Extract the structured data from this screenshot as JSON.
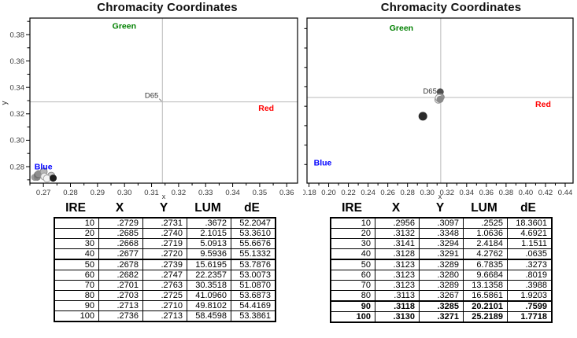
{
  "chart_data": [
    {
      "type": "scatter",
      "title": "Chromacity Coordinates",
      "xlabel": "x",
      "ylabel": "y",
      "xlim": [
        0.265,
        0.364
      ],
      "ylim": [
        0.2675,
        0.3925
      ],
      "xticks": [
        0.27,
        0.28,
        0.29,
        0.3,
        0.31,
        0.32,
        0.33,
        0.34,
        0.35,
        0.36
      ],
      "xtick_labels": [
        "0.27",
        "0.28",
        "0.29",
        "0.30",
        "0.31",
        "0.32",
        "0.33",
        "0.34",
        "0.35",
        "0.36"
      ],
      "x_minor_step": 0.005,
      "yticks": [
        0.28,
        0.3,
        0.32,
        0.34,
        0.36,
        0.38
      ],
      "ytick_labels": [
        "0.28",
        "0.30",
        "0.32",
        "0.34",
        "0.36",
        "0.38"
      ],
      "y_minor_step": 0.01,
      "show_ytick_labels": true,
      "grid": false,
      "crosshair": {
        "x": 0.314,
        "y": 0.329,
        "color": "#b8b8b8"
      },
      "reference_label": {
        "text": "D65",
        "x": 0.314,
        "y": 0.329
      },
      "region_labels": [
        {
          "text": "Green",
          "color": "#008000",
          "x": 0.2999,
          "y": 0.3866
        },
        {
          "text": "Red",
          "color": "#ff0000",
          "x": 0.3524,
          "y": 0.3245
        },
        {
          "text": "Blue",
          "color": "#0000ff",
          "x": 0.27,
          "y": 0.2801
        }
      ],
      "points": [
        {
          "ire": 10,
          "x": 0.2729,
          "y": 0.2731,
          "color": "#c8c8c8",
          "stroke": "#8a8a8a"
        },
        {
          "ire": 20,
          "x": 0.2685,
          "y": 0.274,
          "color": "#7a7a7a"
        },
        {
          "ire": 30,
          "x": 0.2668,
          "y": 0.2719,
          "color": "#9a9a9a"
        },
        {
          "ire": 40,
          "x": 0.2677,
          "y": 0.272,
          "color": "#858585"
        },
        {
          "ire": 50,
          "x": 0.2678,
          "y": 0.2739,
          "color": "#6e6e6e"
        },
        {
          "ire": 60,
          "x": 0.2682,
          "y": 0.2747,
          "color": "#8f8f8f"
        },
        {
          "ire": 70,
          "x": 0.2701,
          "y": 0.2763,
          "color": "#b5b5b5",
          "stroke": "#8a8a8a"
        },
        {
          "ire": 80,
          "x": 0.2703,
          "y": 0.2725,
          "color": "#ededed",
          "stroke": "#9a9a9a"
        },
        {
          "ire": 90,
          "x": 0.2713,
          "y": 0.271,
          "color": "#f5f5f5",
          "stroke": "#a5a5a5"
        },
        {
          "ire": 100,
          "x": 0.2736,
          "y": 0.2713,
          "color": "#1f1f1f"
        }
      ]
    },
    {
      "type": "scatter",
      "title": "Chromacity Coordinates",
      "xlabel": "x",
      "ylabel": "",
      "xlim": [
        0.178,
        0.448
      ],
      "ylim": [
        0.2408,
        0.4108
      ],
      "xticks": [
        0.18,
        0.2,
        0.22,
        0.24,
        0.26,
        0.28,
        0.3,
        0.32,
        0.34,
        0.36,
        0.38,
        0.4,
        0.42,
        0.44
      ],
      "xtick_labels": [
        "0.18",
        "0.20",
        "0.22",
        "0.24",
        "0.26",
        "0.28",
        "0.30",
        "0.32",
        "0.34",
        "0.36",
        "0.38",
        "0.40",
        "0.42",
        "0.44"
      ],
      "x_minor_step": 0.01,
      "yticks": [],
      "ytick_labels": [],
      "y_minor_step": 0.02,
      "show_ytick_labels": false,
      "grid": false,
      "crosshair": {
        "x": 0.3137,
        "y": 0.329,
        "color": "#b8b8b8"
      },
      "reference_label": {
        "text": "D65",
        "x": 0.3137,
        "y": 0.329
      },
      "region_labels": [
        {
          "text": "Green",
          "color": "#008000",
          "x": 0.2738,
          "y": 0.401
        },
        {
          "text": "Red",
          "color": "#ff0000",
          "x": 0.4176,
          "y": 0.3225
        },
        {
          "text": "Blue",
          "color": "#0000ff",
          "x": 0.194,
          "y": 0.2618
        }
      ],
      "points": [
        {
          "ire": 10,
          "x": 0.2956,
          "y": 0.3097,
          "color": "#2b2b2b",
          "r": 5.5
        },
        {
          "ire": 20,
          "x": 0.3132,
          "y": 0.3348,
          "color": "#4f4f4f"
        },
        {
          "ire": 30,
          "x": 0.3141,
          "y": 0.3294,
          "color": "#8c8c8c"
        },
        {
          "ire": 40,
          "x": 0.3128,
          "y": 0.3291,
          "color": "#a3a3a3"
        },
        {
          "ire": 50,
          "x": 0.3123,
          "y": 0.3289,
          "color": "#b8b8b8"
        },
        {
          "ire": 60,
          "x": 0.3123,
          "y": 0.328,
          "color": "#c9c9c9",
          "stroke": "#9a9a9a"
        },
        {
          "ire": 70,
          "x": 0.3123,
          "y": 0.3289,
          "color": "#d6d6d6",
          "stroke": "#9a9a9a"
        },
        {
          "ire": 80,
          "x": 0.3113,
          "y": 0.3267,
          "color": "#e3e3e3",
          "stroke": "#9a9a9a"
        },
        {
          "ire": 90,
          "x": 0.3118,
          "y": 0.3285,
          "color": "#efefef",
          "stroke": "#9a9a9a"
        },
        {
          "ire": 100,
          "x": 0.313,
          "y": 0.3271,
          "color": "#8a8a8a"
        }
      ]
    },
    {
      "type": "table",
      "headers": [
        "IRE",
        "X",
        "Y",
        "LUM",
        "dE"
      ],
      "rows": [
        [
          "10",
          ".2729",
          ".2731",
          ".3672",
          "52.2047"
        ],
        [
          "20",
          ".2685",
          ".2740",
          "2.1015",
          "53.3610"
        ],
        [
          "30",
          ".2668",
          ".2719",
          "5.0913",
          "55.6676"
        ],
        [
          "40",
          ".2677",
          ".2720",
          "9.5936",
          "55.1332"
        ],
        [
          "50",
          ".2678",
          ".2739",
          "15.6195",
          "53.7876"
        ],
        [
          "60",
          ".2682",
          ".2747",
          "22.2357",
          "53.0073"
        ],
        [
          "70",
          ".2701",
          ".2763",
          "30.3518",
          "51.0870"
        ],
        [
          "80",
          ".2703",
          ".2725",
          "41.0960",
          "53.6873"
        ],
        [
          "90",
          ".2713",
          ".2710",
          "49.8102",
          "54.4169"
        ],
        [
          "100",
          ".2736",
          ".2713",
          "58.4598",
          "53.3861"
        ]
      ],
      "bold_row_indexes": [],
      "group_separator_row_indexes": [
        4
      ]
    },
    {
      "type": "table",
      "headers": [
        "IRE",
        "X",
        "Y",
        "LUM",
        "dE"
      ],
      "rows": [
        [
          "10",
          ".2956",
          ".3097",
          ".2525",
          "18.3601"
        ],
        [
          "20",
          ".3132",
          ".3348",
          "1.0636",
          "4.6921"
        ],
        [
          "30",
          ".3141",
          ".3294",
          "2.4184",
          "1.1511"
        ],
        [
          "40",
          ".3128",
          ".3291",
          "4.2762",
          ".0635"
        ],
        [
          "50",
          ".3123",
          ".3289",
          "6.7835",
          ".3273"
        ],
        [
          "60",
          ".3123",
          ".3280",
          "9.6684",
          ".8019"
        ],
        [
          "70",
          ".3123",
          ".3289",
          "13.1358",
          ".3988"
        ],
        [
          "80",
          ".3113",
          ".3267",
          "16.5861",
          "1.9203"
        ],
        [
          "90",
          ".3118",
          ".3285",
          "20.2101",
          ".7599"
        ],
        [
          "100",
          ".3130",
          ".3271",
          "25.2189",
          "1.7718"
        ]
      ],
      "bold_row_indexes": [
        8,
        9
      ],
      "group_separator_row_indexes": [
        4,
        8
      ]
    }
  ],
  "colors": {
    "axis": "#000000",
    "crosshair": "#b8b8b8",
    "tick_text": "#383838",
    "background": "#ffffff"
  }
}
